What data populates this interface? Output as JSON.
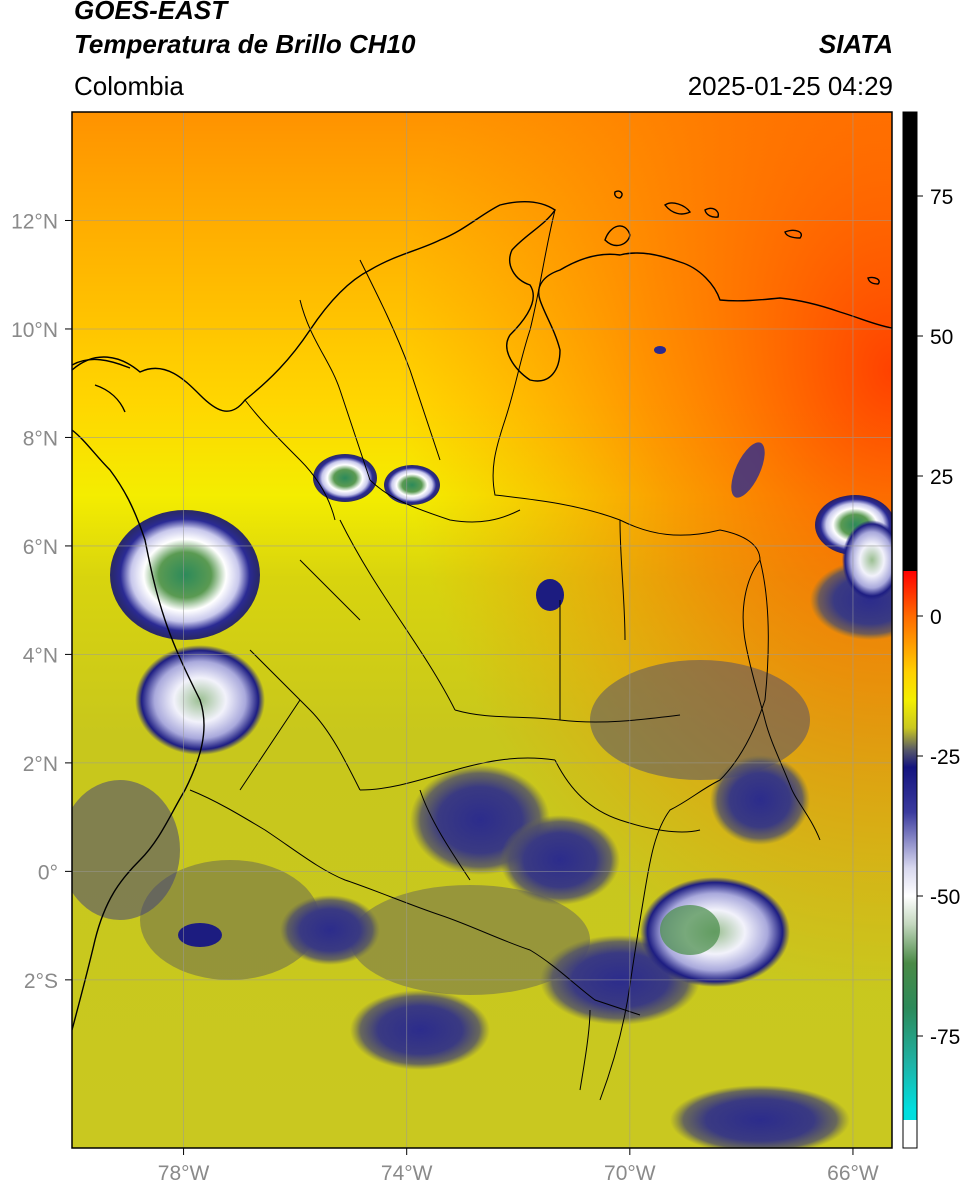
{
  "header": {
    "satellite": "GOES-EAST",
    "product": "Temperatura de Brillo CH10",
    "brand": "SIATA",
    "region": "Colombia",
    "timestamp": "2025-01-25 04:29"
  },
  "map": {
    "lon_range": [
      -80,
      -65.3
    ],
    "lat_range": [
      -5.1,
      14
    ],
    "lon_ticks": [
      {
        "value": -78,
        "label": "78°W"
      },
      {
        "value": -74,
        "label": "74°W"
      },
      {
        "value": -70,
        "label": "70°W"
      },
      {
        "value": -66,
        "label": "66°W"
      }
    ],
    "lat_ticks": [
      {
        "value": 12,
        "label": "12°N"
      },
      {
        "value": 10,
        "label": "10°N"
      },
      {
        "value": 8,
        "label": "8°N"
      },
      {
        "value": 6,
        "label": "6°N"
      },
      {
        "value": 4,
        "label": "4°N"
      },
      {
        "value": 2,
        "label": "2°N"
      },
      {
        "value": 0,
        "label": "0°"
      },
      {
        "value": -2,
        "label": "2°S"
      }
    ],
    "gridlines": true
  },
  "colorbar": {
    "range": [
      -95,
      90
    ],
    "ticks": [
      {
        "value": 75,
        "label": "75"
      },
      {
        "value": 50,
        "label": "50"
      },
      {
        "value": 25,
        "label": "25"
      },
      {
        "value": 0,
        "label": "0"
      },
      {
        "value": -25,
        "label": "-25"
      },
      {
        "value": -50,
        "label": "-50"
      },
      {
        "value": -75,
        "label": "-75"
      }
    ],
    "stops": [
      {
        "value": 90,
        "color": "#000000"
      },
      {
        "value": 8,
        "color": "#000000"
      },
      {
        "value": 8,
        "color": "#ff0000"
      },
      {
        "value": 0,
        "color": "#ff6a00"
      },
      {
        "value": -10,
        "color": "#ffd000"
      },
      {
        "value": -15,
        "color": "#f3ef00"
      },
      {
        "value": -20,
        "color": "#c9c820"
      },
      {
        "value": -24,
        "color": "#55576a"
      },
      {
        "value": -27,
        "color": "#14147f"
      },
      {
        "value": -35,
        "color": "#3a3a9e"
      },
      {
        "value": -45,
        "color": "#d8d8ef"
      },
      {
        "value": -50,
        "color": "#ffffff"
      },
      {
        "value": -55,
        "color": "#c4d8bf"
      },
      {
        "value": -62,
        "color": "#4a8a46"
      },
      {
        "value": -70,
        "color": "#2c8a5a"
      },
      {
        "value": -80,
        "color": "#1fb3a6"
      },
      {
        "value": -88,
        "color": "#00dede"
      },
      {
        "value": -90,
        "color": "#00dede"
      },
      {
        "value": -90,
        "color": "#ffffff"
      },
      {
        "value": -95,
        "color": "#ffffff"
      }
    ]
  }
}
